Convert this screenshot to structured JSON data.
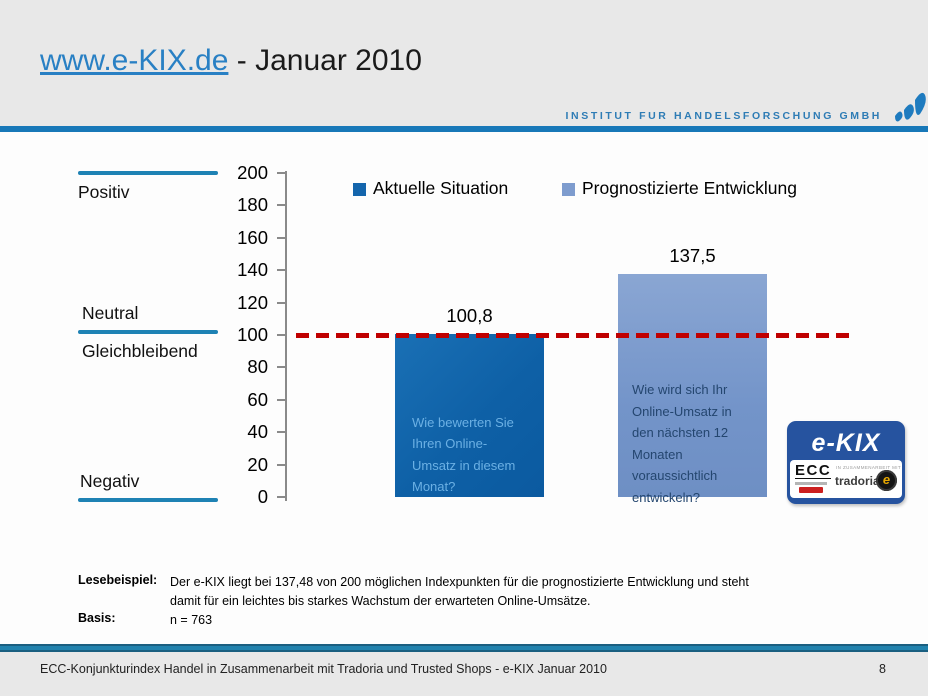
{
  "header": {
    "title_link": "www.e-KIX.de",
    "title_rest": " - Januar 2010",
    "brand": "INSTITUT FUR HANDELSFORSCHUNG GMBH"
  },
  "chart_data": {
    "type": "bar",
    "title": "",
    "categories": [
      "Aktuelle Situation",
      "Prognostizierte Entwicklung"
    ],
    "values": [
      100.8,
      137.5
    ],
    "value_labels": [
      "100,8",
      "137,5"
    ],
    "ylim": [
      0,
      200
    ],
    "ytick_step": 20,
    "yticks": [
      "200",
      "180",
      "160",
      "140",
      "120",
      "100",
      "80",
      "60",
      "40",
      "20",
      "0"
    ],
    "grid": false,
    "legend_position": "top",
    "legend": [
      {
        "label": "Aktuelle Situation",
        "color": "#1465ac"
      },
      {
        "label": "Prognostizierte Entwicklung",
        "color": "#7e9cce"
      }
    ],
    "reference_line": {
      "value": 100,
      "color": "#c00000",
      "style": "dashed"
    },
    "region_labels": [
      {
        "label": "Positiv",
        "at": 200
      },
      {
        "label": "Neutral",
        "at": 100
      },
      {
        "label": "Gleichbleibend",
        "at": 100
      },
      {
        "label": "Negativ",
        "at": 0
      }
    ],
    "bars": [
      {
        "value": 100.8,
        "label": "100,8",
        "color": "#0e60a6",
        "question": "Wie bewerten Sie Ihren Online-Umsatz in diesem Monat?"
      },
      {
        "value": 137.5,
        "label": "137,5",
        "color": "#7394c9",
        "question": "Wie wird sich Ihr Online-Umsatz in den nächsten 12 Monaten voraussichtlich entwickeln?"
      }
    ]
  },
  "logo_badge": {
    "title": "e-KIX",
    "ecc": "ECC",
    "cooperation": "IN ZUSAMMENARBEIT MIT",
    "partner": "tradoria",
    "badge_letter": "e"
  },
  "notes": {
    "example_label": "Lesebeispiel:",
    "example_text": "Der e-KIX liegt bei 137,48 von 200 möglichen Indexpunkten für die prognostizierte Entwicklung und steht damit für ein leichtes bis starkes Wachstum der erwarteten  Online-Umsätze.",
    "basis_label": "Basis:",
    "basis_value": "n = 763"
  },
  "footer": {
    "text": "ECC-Konjunkturindex Handel in Zusammenarbeit mit Tradoria und Trusted Shops - e-KIX Januar 2010",
    "page": "8"
  },
  "colors": {
    "accent_blue": "#1878b8",
    "header_bg": "#e8e8e8",
    "content_bg": "#fdfdfd",
    "reference_red": "#c00000",
    "region_line_blue": "#1e82b4",
    "badge_navy": "#26539f"
  }
}
